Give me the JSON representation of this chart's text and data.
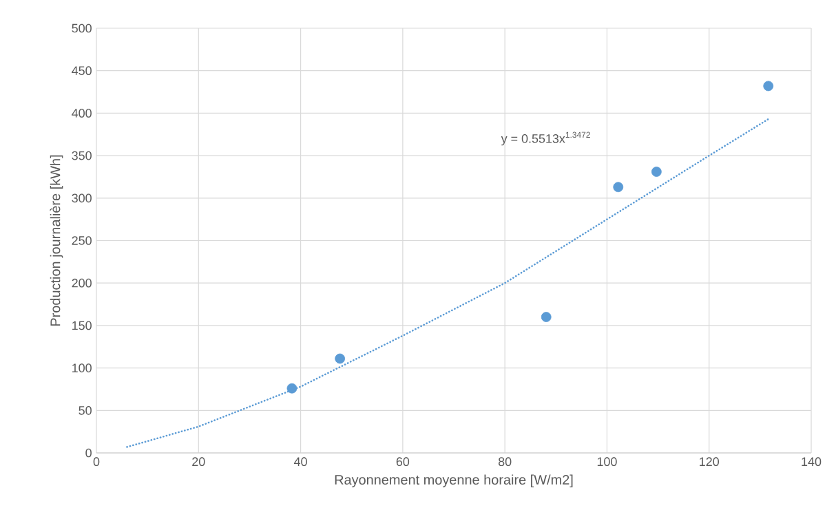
{
  "chart_data": {
    "type": "scatter",
    "xlabel": "Rayonnement moyenne horaire [W/m2]",
    "ylabel": "Production journalière [kWh]",
    "annotations": [
      "y = 0.5513x$^{1.3472}$"
    ],
    "series": [
      {
        "color": "#5b9bd5",
        "marker": "circle",
        "x": [
          38.3,
          47.7,
          88.1,
          102.2,
          109.7,
          131.6
        ],
        "values": [
          76,
          111,
          160,
          313,
          331,
          432
        ]
      },
      {
        "type": "line",
        "color": "#5b9bd5",
        "marker": "none",
        "line_style": "dotted",
        "x": [
          6,
          20,
          40,
          60,
          80,
          100,
          120,
          131.6
        ],
        "values": [
          7,
          31,
          78,
          138,
          200,
          275,
          350,
          393
        ]
      }
    ],
    "xlim": [
      0,
      140
    ],
    "ylim": [
      0,
      500
    ],
    "xticks": [
      0,
      20,
      40,
      60,
      80,
      100,
      120,
      140
    ],
    "yticks": [
      0,
      50,
      100,
      150,
      200,
      250,
      300,
      350,
      400,
      450,
      500
    ],
    "grid": true
  }
}
